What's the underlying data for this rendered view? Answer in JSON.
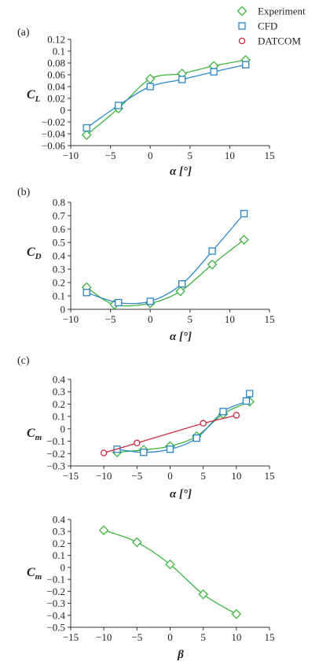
{
  "legend": [
    {
      "name": "Experiment",
      "color": "#3db33d",
      "marker": "diamond"
    },
    {
      "name": "CFD",
      "color": "#2a84c8",
      "marker": "square"
    },
    {
      "name": "DATCOM",
      "color": "#c9283e",
      "marker": "circle"
    }
  ],
  "chart_data": [
    {
      "type": "line",
      "panel_label": "(a)",
      "ylabel": "C",
      "ylabel_sub": "L",
      "xlabel": "α [°]",
      "xlim": [
        -10,
        15
      ],
      "xticks": [
        -10,
        -5,
        0,
        5,
        10,
        15
      ],
      "xtick_labels": [
        "−10",
        "−5",
        "0",
        "5",
        "10",
        "15"
      ],
      "ylim": [
        -0.06,
        0.12
      ],
      "yticks": [
        -0.06,
        -0.04,
        -0.02,
        0,
        0.02,
        0.04,
        0.06,
        0.08,
        0.1,
        0.12
      ],
      "ytick_labels": [
        "−0.06",
        "−0.04",
        "−0.02",
        "0",
        "0.02",
        "0.04",
        "0.06",
        "0.08",
        "0.1",
        "0.12"
      ],
      "grid": false,
      "series": [
        {
          "name": "Experiment",
          "x": [
            -8,
            -4,
            0,
            4,
            8,
            12
          ],
          "y": [
            -0.042,
            0.003,
            0.053,
            0.062,
            0.075,
            0.085
          ]
        },
        {
          "name": "CFD",
          "x": [
            -8,
            -4,
            0,
            4,
            8,
            12
          ],
          "y": [
            -0.03,
            0.008,
            0.04,
            0.052,
            0.065,
            0.077
          ]
        }
      ]
    },
    {
      "type": "line",
      "panel_label": "(b)",
      "ylabel": "C",
      "ylabel_sub": "D",
      "xlabel": "α [°]",
      "xlim": [
        -10,
        15
      ],
      "xticks": [
        -10,
        -5,
        0,
        5,
        10,
        15
      ],
      "xtick_labels": [
        "−10",
        "−5",
        "0",
        "5",
        "10",
        "15"
      ],
      "ylim": [
        0,
        0.8
      ],
      "yticks": [
        0,
        0.1,
        0.2,
        0.3,
        0.4,
        0.5,
        0.6,
        0.7,
        0.8
      ],
      "ytick_labels": [
        "0",
        "0.1",
        "0.2",
        "0.3",
        "0.4",
        "0.5",
        "0.6",
        "0.7",
        "0.8"
      ],
      "grid": false,
      "series": [
        {
          "name": "Experiment",
          "x": [
            -8,
            -4.5,
            0,
            3.8,
            7.8,
            11.8
          ],
          "y": [
            0.165,
            0.035,
            0.045,
            0.135,
            0.335,
            0.52
          ]
        },
        {
          "name": "CFD",
          "x": [
            -8,
            -4,
            0,
            4,
            7.8,
            11.8
          ],
          "y": [
            0.125,
            0.05,
            0.06,
            0.19,
            0.435,
            0.715
          ]
        }
      ]
    },
    {
      "type": "line",
      "panel_label": "(c)",
      "ylabel": "C",
      "ylabel_sub": "m",
      "xlabel": "α [°]",
      "xlim": [
        -15,
        15
      ],
      "xticks": [
        -15,
        -10,
        -5,
        0,
        5,
        10,
        15
      ],
      "xtick_labels": [
        "−15",
        "−10",
        "−5",
        "0",
        "5",
        "10",
        "15"
      ],
      "ylim": [
        -0.3,
        0.4
      ],
      "yticks": [
        -0.3,
        -0.2,
        -0.1,
        0,
        0.1,
        0.2,
        0.3,
        0.4
      ],
      "ytick_labels": [
        "−0.3",
        "−0.2",
        "−0.1",
        "0",
        "0.1",
        "0.2",
        "0.3",
        "0.4"
      ],
      "grid": false,
      "series": [
        {
          "name": "Experiment",
          "x": [
            -8,
            -4,
            0,
            4,
            8,
            12
          ],
          "y": [
            -0.19,
            -0.17,
            -0.14,
            -0.06,
            0.12,
            0.22
          ]
        },
        {
          "name": "CFD",
          "x": [
            -8,
            -4,
            0,
            4,
            8,
            11.5,
            12
          ],
          "y": [
            -0.165,
            -0.19,
            -0.165,
            -0.075,
            0.14,
            0.225,
            0.285
          ]
        },
        {
          "name": "DATCOM",
          "x": [
            -10,
            -5,
            5,
            10
          ],
          "y": [
            -0.195,
            -0.115,
            0.045,
            0.11
          ]
        }
      ]
    },
    {
      "type": "line",
      "panel_label": "",
      "ylabel": "C",
      "ylabel_sub": "m",
      "xlabel": "β",
      "xlim": [
        -15,
        15
      ],
      "xticks": [
        -15,
        -10,
        -5,
        0,
        5,
        10,
        15
      ],
      "xtick_labels": [
        "−15",
        "−10",
        "−5",
        "0",
        "5",
        "10",
        "15"
      ],
      "ylim": [
        -0.5,
        0.4
      ],
      "yticks": [
        -0.5,
        -0.4,
        -0.3,
        -0.2,
        -0.1,
        0,
        0.1,
        0.2,
        0.3,
        0.4
      ],
      "ytick_labels": [
        "−0.5",
        "−0.4",
        "−0.3",
        "−0.2",
        "−0.1",
        "0",
        "0.1",
        "0.2",
        "0.3",
        "0.4"
      ],
      "grid": false,
      "series": [
        {
          "name": "Experiment",
          "x": [
            -10,
            -5,
            0,
            5,
            10
          ],
          "y": [
            0.31,
            0.21,
            0.025,
            -0.225,
            -0.39
          ]
        }
      ]
    }
  ]
}
